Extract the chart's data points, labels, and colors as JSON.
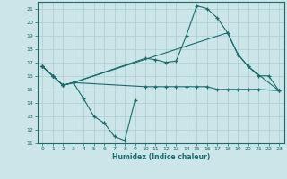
{
  "title": "",
  "xlabel": "Humidex (Indice chaleur)",
  "xlim": [
    -0.5,
    23.5
  ],
  "ylim": [
    11,
    21.5
  ],
  "yticks": [
    11,
    12,
    13,
    14,
    15,
    16,
    17,
    18,
    19,
    20,
    21
  ],
  "xticks": [
    0,
    1,
    2,
    3,
    4,
    5,
    6,
    7,
    8,
    9,
    10,
    11,
    12,
    13,
    14,
    15,
    16,
    17,
    18,
    19,
    20,
    21,
    22,
    23
  ],
  "bg_color": "#cce5e8",
  "grid_color": "#aacdd4",
  "line_color": "#1a6b6b",
  "lines": [
    {
      "x": [
        0,
        1,
        2,
        3,
        4,
        5,
        6,
        7,
        8,
        9
      ],
      "y": [
        16.7,
        16.0,
        15.3,
        15.5,
        14.3,
        13.0,
        12.5,
        11.5,
        11.2,
        14.2
      ]
    },
    {
      "x": [
        0,
        1,
        2,
        3,
        10,
        11,
        12,
        13,
        14,
        15,
        16,
        17,
        18,
        19,
        20,
        21,
        22,
        23
      ],
      "y": [
        16.7,
        16.0,
        15.3,
        15.5,
        17.3,
        17.2,
        17.0,
        17.1,
        19.0,
        21.2,
        21.0,
        20.3,
        19.2,
        17.6,
        16.7,
        16.0,
        16.0,
        14.9
      ]
    },
    {
      "x": [
        0,
        1,
        2,
        3,
        18,
        19,
        20,
        23
      ],
      "y": [
        16.7,
        16.0,
        15.3,
        15.5,
        19.2,
        17.6,
        16.7,
        14.9
      ]
    },
    {
      "x": [
        0,
        1,
        2,
        3,
        10,
        11,
        12,
        13,
        14,
        15,
        16,
        17,
        18,
        19,
        20,
        21,
        23
      ],
      "y": [
        16.7,
        16.0,
        15.3,
        15.5,
        15.2,
        15.2,
        15.2,
        15.2,
        15.2,
        15.2,
        15.2,
        15.0,
        15.0,
        15.0,
        15.0,
        15.0,
        14.9
      ]
    }
  ]
}
